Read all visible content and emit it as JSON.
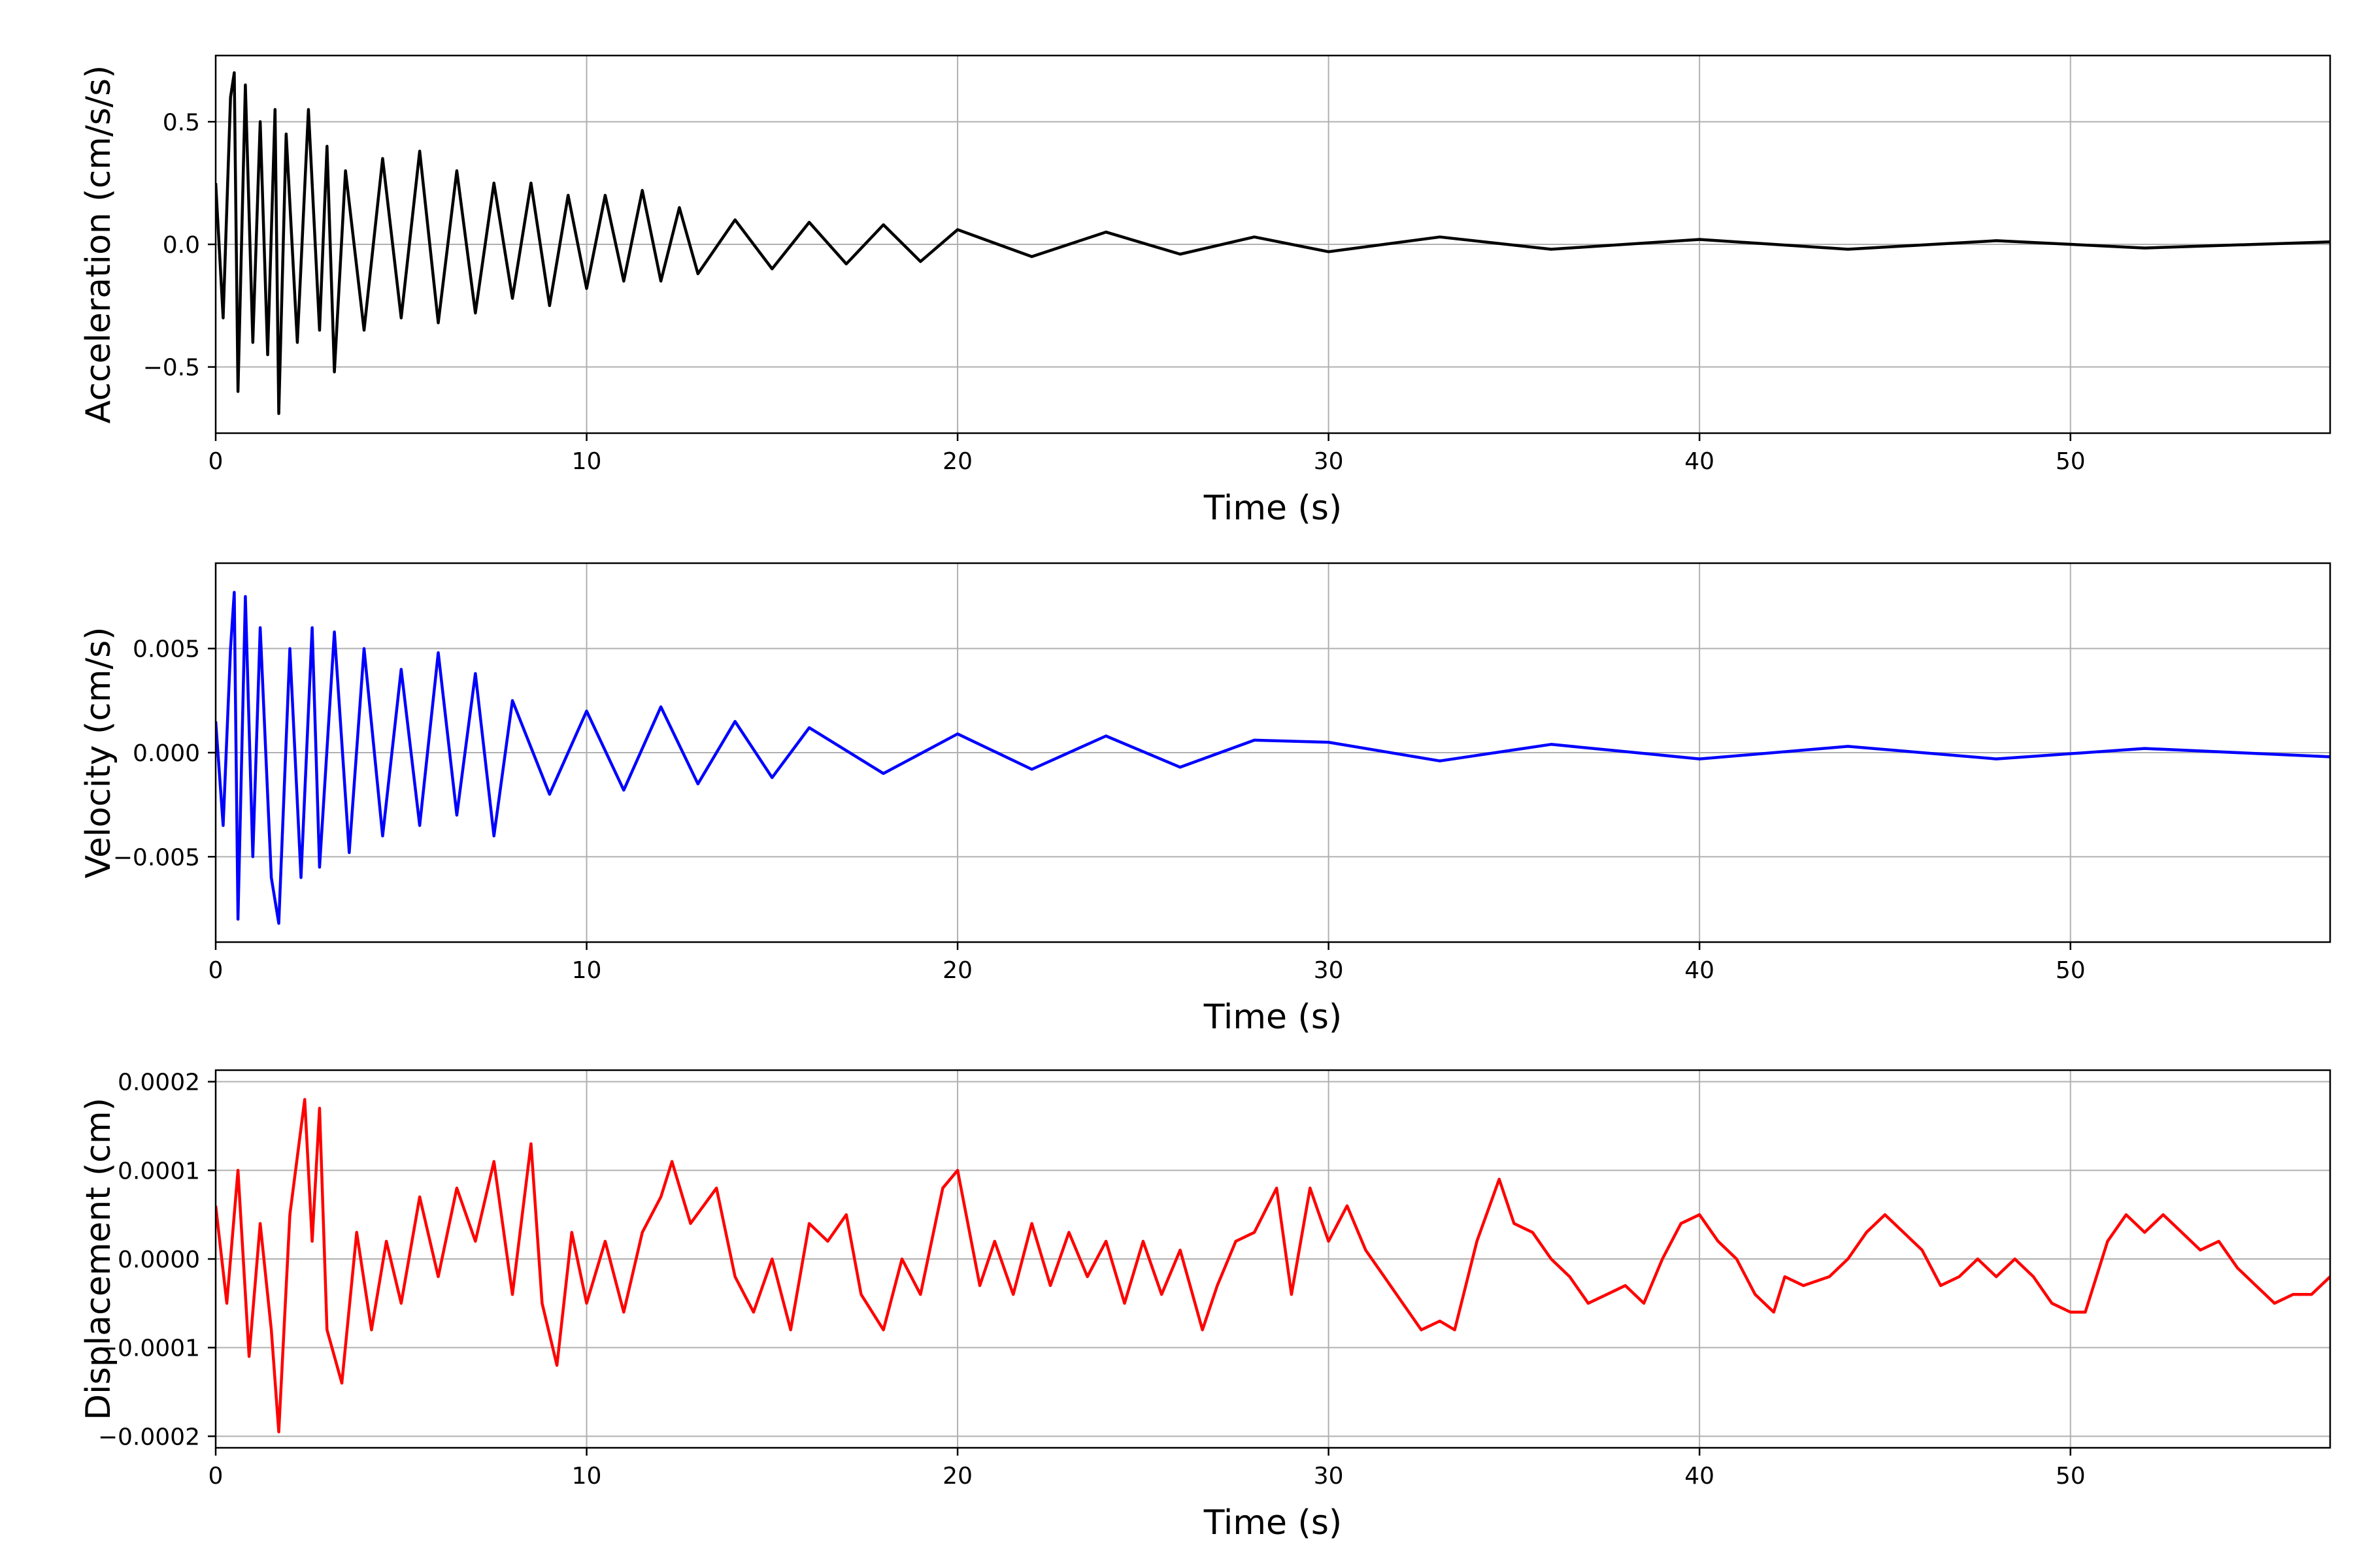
{
  "chart_data": [
    {
      "type": "line",
      "xlabel": "Time (s)",
      "ylabel": "Acceleration (cm/s/s)",
      "xlim": [
        0,
        57
      ],
      "ylim": [
        -0.77,
        0.77
      ],
      "xticks": [
        0,
        10,
        20,
        30,
        40,
        50
      ],
      "xtick_labels": [
        "0",
        "10",
        "20",
        "30",
        "40",
        "50"
      ],
      "yticks": [
        -0.5,
        0.0,
        0.5
      ],
      "ytick_labels": [
        "−0.5",
        "0.0",
        "0.5"
      ],
      "grid": true,
      "color": "#000000",
      "series": [
        {
          "x": [
            0,
            0.2,
            0.4,
            0.5,
            0.6,
            0.8,
            1.0,
            1.2,
            1.4,
            1.6,
            1.7,
            1.9,
            2.2,
            2.5,
            2.8,
            3.0,
            3.2,
            3.5,
            4.0,
            4.5,
            5.0,
            5.5,
            6.0,
            6.5,
            7.0,
            7.5,
            8.0,
            8.5,
            9.0,
            9.5,
            10.0,
            10.5,
            11.0,
            11.5,
            12.0,
            12.5,
            13.0,
            14.0,
            15.0,
            16.0,
            17.0,
            18.0,
            19.0,
            20.0,
            22.0,
            24.0,
            26.0,
            28.0,
            30.0,
            33.0,
            36.0,
            40.0,
            44.0,
            48.0,
            52.0,
            57.0
          ],
          "y": [
            0.25,
            -0.3,
            0.6,
            0.7,
            -0.6,
            0.65,
            -0.4,
            0.5,
            -0.45,
            0.55,
            -0.69,
            0.45,
            -0.4,
            0.55,
            -0.35,
            0.4,
            -0.52,
            0.3,
            -0.35,
            0.35,
            -0.3,
            0.38,
            -0.32,
            0.3,
            -0.28,
            0.25,
            -0.22,
            0.25,
            -0.25,
            0.2,
            -0.18,
            0.2,
            -0.15,
            0.22,
            -0.15,
            0.15,
            -0.12,
            0.1,
            -0.1,
            0.09,
            -0.08,
            0.08,
            -0.07,
            0.06,
            -0.05,
            0.05,
            -0.04,
            0.03,
            -0.03,
            0.03,
            -0.02,
            0.02,
            -0.02,
            0.015,
            -0.015,
            0.01
          ]
        }
      ]
    },
    {
      "type": "line",
      "xlabel": "Time (s)",
      "ylabel": "Velocity (cm/s)",
      "xlim": [
        0,
        57
      ],
      "ylim": [
        -0.0091,
        0.0091
      ],
      "xticks": [
        0,
        10,
        20,
        30,
        40,
        50
      ],
      "xtick_labels": [
        "0",
        "10",
        "20",
        "30",
        "40",
        "50"
      ],
      "yticks": [
        -0.005,
        0.0,
        0.005
      ],
      "ytick_labels": [
        "−0.005",
        "0.000",
        "0.005"
      ],
      "grid": true,
      "color": "#0000ff",
      "series": [
        {
          "x": [
            0,
            0.2,
            0.4,
            0.5,
            0.6,
            0.8,
            1.0,
            1.2,
            1.5,
            1.7,
            2.0,
            2.3,
            2.6,
            2.8,
            3.2,
            3.6,
            4.0,
            4.5,
            5.0,
            5.5,
            6.0,
            6.5,
            7.0,
            7.5,
            8.0,
            9.0,
            10.0,
            11.0,
            12.0,
            13.0,
            14.0,
            15.0,
            16.0,
            18.0,
            20.0,
            22.0,
            24.0,
            26.0,
            28.0,
            30.0,
            33.0,
            36.0,
            40.0,
            44.0,
            48.0,
            52.0,
            57.0
          ],
          "y": [
            0.0015,
            -0.0035,
            0.005,
            0.0077,
            -0.008,
            0.0075,
            -0.005,
            0.006,
            -0.006,
            -0.0082,
            0.005,
            -0.006,
            0.006,
            -0.0055,
            0.0058,
            -0.0048,
            0.005,
            -0.004,
            0.004,
            -0.0035,
            0.0048,
            -0.003,
            0.0038,
            -0.004,
            0.0025,
            -0.002,
            0.002,
            -0.0018,
            0.0022,
            -0.0015,
            0.0015,
            -0.0012,
            0.0012,
            -0.001,
            0.0009,
            -0.0008,
            0.0008,
            -0.0007,
            0.0006,
            0.0005,
            -0.0004,
            0.0004,
            -0.0003,
            0.0003,
            -0.0003,
            0.0002,
            -0.0002
          ]
        }
      ]
    },
    {
      "type": "line",
      "xlabel": "Time (s)",
      "ylabel": "Displacement (cm)",
      "xlim": [
        0,
        57
      ],
      "ylim": [
        -0.000213,
        0.000213
      ],
      "xticks": [
        0,
        10,
        20,
        30,
        40,
        50
      ],
      "xtick_labels": [
        "0",
        "10",
        "20",
        "30",
        "40",
        "50"
      ],
      "yticks": [
        -0.0002,
        -0.0001,
        0.0,
        0.0001,
        0.0002
      ],
      "ytick_labels": [
        "−0.0002",
        "−0.0001",
        "0.0000",
        "0.0001",
        "0.0002"
      ],
      "grid": true,
      "color": "#ff0000",
      "series": [
        {
          "x": [
            0,
            0.3,
            0.6,
            0.9,
            1.2,
            1.5,
            1.7,
            2.0,
            2.4,
            2.6,
            2.8,
            3.0,
            3.4,
            3.8,
            4.2,
            4.6,
            5.0,
            5.5,
            6.0,
            6.5,
            7.0,
            7.5,
            8.0,
            8.5,
            8.8,
            9.2,
            9.6,
            10.0,
            10.5,
            11.0,
            11.5,
            12.0,
            12.3,
            12.8,
            13.5,
            14.0,
            14.5,
            15.0,
            15.5,
            16.0,
            16.5,
            17.0,
            17.4,
            18.0,
            18.5,
            19.0,
            19.6,
            20.0,
            20.6,
            21.0,
            21.5,
            22.0,
            22.5,
            23.0,
            23.5,
            24.0,
            24.5,
            25.0,
            25.5,
            26.0,
            26.6,
            27.0,
            27.5,
            28.0,
            28.6,
            29.0,
            29.5,
            30.0,
            30.5,
            31.0,
            31.5,
            32.0,
            32.5,
            33.0,
            33.4,
            34.0,
            34.6,
            35.0,
            35.5,
            36.0,
            36.5,
            37.0,
            37.5,
            38.0,
            38.5,
            39.0,
            39.5,
            40.0,
            40.5,
            41.0,
            41.5,
            42.0,
            42.3,
            42.8,
            43.5,
            44.0,
            44.5,
            45.0,
            45.5,
            46.0,
            46.5,
            47.0,
            47.5,
            48.0,
            48.5,
            49.0,
            49.5,
            50.0,
            50.4,
            51.0,
            51.5,
            52.0,
            52.5,
            53.0,
            53.5,
            54.0,
            54.5,
            55.0,
            55.5,
            56.0,
            56.5,
            57.0
          ],
          "y": [
            6e-05,
            -5e-05,
            0.0001,
            -0.00011,
            4e-05,
            -8e-05,
            -0.000195,
            5e-05,
            0.00018,
            2e-05,
            0.00017,
            -8e-05,
            -0.00014,
            3e-05,
            -8e-05,
            2e-05,
            -5e-05,
            7e-05,
            -2e-05,
            8e-05,
            2e-05,
            0.00011,
            -4e-05,
            0.00013,
            -5e-05,
            -0.00012,
            3e-05,
            -5e-05,
            2e-05,
            -6e-05,
            3e-05,
            7e-05,
            0.00011,
            4e-05,
            8e-05,
            -2e-05,
            -6e-05,
            0.0,
            -8e-05,
            4e-05,
            2e-05,
            5e-05,
            -4e-05,
            -8e-05,
            0.0,
            -4e-05,
            8e-05,
            0.0001,
            -3e-05,
            2e-05,
            -4e-05,
            4e-05,
            -3e-05,
            3e-05,
            -2e-05,
            2e-05,
            -5e-05,
            2e-05,
            -4e-05,
            1e-05,
            -8e-05,
            -3e-05,
            2e-05,
            3e-05,
            8e-05,
            -4e-05,
            8e-05,
            2e-05,
            6e-05,
            1e-05,
            -2e-05,
            -5e-05,
            -8e-05,
            -7e-05,
            -8e-05,
            2e-05,
            9e-05,
            4e-05,
            3e-05,
            0.0,
            -2e-05,
            -5e-05,
            -4e-05,
            -3e-05,
            -5e-05,
            0.0,
            4e-05,
            5e-05,
            2e-05,
            0.0,
            -4e-05,
            -6e-05,
            -2e-05,
            -3e-05,
            -2e-05,
            0.0,
            3e-05,
            5e-05,
            3e-05,
            1e-05,
            -3e-05,
            -2e-05,
            0.0,
            -2e-05,
            0.0,
            -2e-05,
            -5e-05,
            -6e-05,
            -6e-05,
            2e-05,
            5e-05,
            3e-05,
            5e-05,
            3e-05,
            1e-05,
            2e-05,
            -1e-05,
            -3e-05,
            -5e-05,
            -4e-05,
            -4e-05,
            -2e-05
          ]
        }
      ]
    }
  ]
}
